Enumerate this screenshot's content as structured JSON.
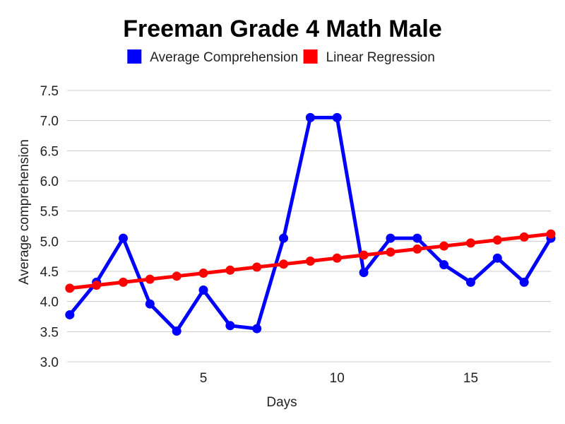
{
  "chart_data": {
    "type": "line",
    "title": "Freeman Grade 4 Math Male",
    "xlabel": "Days",
    "ylabel": "Average comprehension",
    "xlim": [
      -0.1,
      18
    ],
    "ylim": [
      3.0,
      7.5
    ],
    "xticks": [
      5,
      10,
      15
    ],
    "yticks": [
      3.0,
      3.5,
      4.0,
      4.5,
      5.0,
      5.5,
      6.0,
      6.5,
      7.0,
      7.5
    ],
    "grid": "horizontal",
    "legend_position": "top",
    "series": [
      {
        "name": "Average Comprehension",
        "color": "#0000ff",
        "x": [
          0,
          1,
          2,
          3,
          4,
          5,
          6,
          7,
          8,
          9,
          10,
          11,
          12,
          13,
          14,
          15,
          16,
          17,
          18
        ],
        "y": [
          3.78,
          4.32,
          5.05,
          3.96,
          3.51,
          4.19,
          3.6,
          3.55,
          5.05,
          7.05,
          7.05,
          4.48,
          5.05,
          5.05,
          4.61,
          4.32,
          4.72,
          4.32,
          5.05
        ]
      },
      {
        "name": "Linear Regression",
        "color": "#ff0000",
        "x": [
          0,
          1,
          2,
          3,
          4,
          5,
          6,
          7,
          8,
          9,
          10,
          11,
          12,
          13,
          14,
          15,
          16,
          17,
          18
        ],
        "y": [
          4.22,
          4.27,
          4.32,
          4.37,
          4.42,
          4.47,
          4.52,
          4.57,
          4.62,
          4.67,
          4.72,
          4.77,
          4.82,
          4.87,
          4.92,
          4.97,
          5.02,
          5.07,
          5.12
        ]
      }
    ]
  }
}
